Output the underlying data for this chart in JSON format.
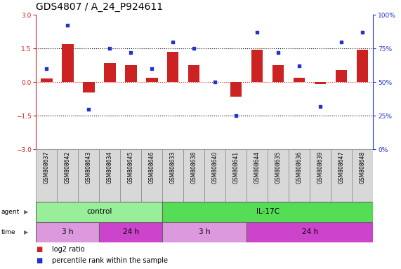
{
  "title": "GDS4807 / A_24_P924611",
  "samples": [
    "GSM808637",
    "GSM808642",
    "GSM808643",
    "GSM808634",
    "GSM808645",
    "GSM808646",
    "GSM808633",
    "GSM808638",
    "GSM808640",
    "GSM808641",
    "GSM808644",
    "GSM808635",
    "GSM808636",
    "GSM808639",
    "GSM808647",
    "GSM808648"
  ],
  "log2_ratio": [
    0.15,
    1.7,
    -0.45,
    0.85,
    0.75,
    0.2,
    1.35,
    0.75,
    0.0,
    -0.65,
    1.45,
    0.75,
    0.2,
    -0.1,
    0.55,
    1.45
  ],
  "percentile": [
    60,
    92,
    30,
    75,
    72,
    60,
    80,
    75,
    50,
    25,
    87,
    72,
    62,
    32,
    80,
    87
  ],
  "bar_color": "#cc2222",
  "dot_color": "#2233cc",
  "ylim_left": [
    -3,
    3
  ],
  "ylim_right": [
    0,
    100
  ],
  "yticks_left": [
    -3,
    -1.5,
    0,
    1.5,
    3
  ],
  "yticks_right": [
    0,
    25,
    50,
    75,
    100
  ],
  "hline_dotted": [
    -1.5,
    1.5
  ],
  "hline_red": 0,
  "agent_labels": [
    {
      "label": "control",
      "start": 0,
      "end": 6,
      "color": "#99ee99"
    },
    {
      "label": "IL-17C",
      "start": 6,
      "end": 16,
      "color": "#55dd55"
    }
  ],
  "time_labels": [
    {
      "label": "3 h",
      "start": 0,
      "end": 3,
      "color": "#dd99dd"
    },
    {
      "label": "24 h",
      "start": 3,
      "end": 6,
      "color": "#cc44cc"
    },
    {
      "label": "3 h",
      "start": 6,
      "end": 10,
      "color": "#dd99dd"
    },
    {
      "label": "24 h",
      "start": 10,
      "end": 16,
      "color": "#cc44cc"
    }
  ],
  "legend_items": [
    {
      "color": "#cc2222",
      "label": "log2 ratio"
    },
    {
      "color": "#2233cc",
      "label": "percentile rank within the sample"
    }
  ],
  "bg_color": "#ffffff",
  "title_fontsize": 10,
  "tick_fontsize": 6.5,
  "sample_fontsize": 5.5,
  "row_fontsize": 7.5,
  "legend_fontsize": 7
}
